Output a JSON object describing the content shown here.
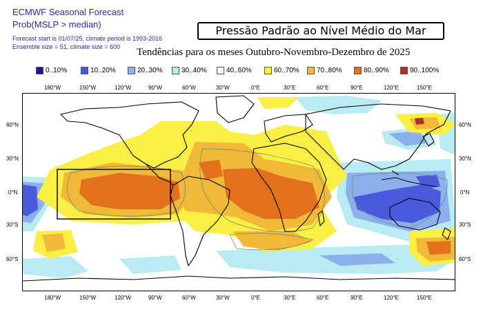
{
  "header": {
    "line1": "ECMWF Seasonal Forecast",
    "line2": "Prob(MSLP > median)",
    "line3": "Forecast start is 01/07/25, climate period is 1993-2016",
    "line4": "Ensemble size = 51, climate size = 600"
  },
  "title": "Pressão Padrão ao Nível Médio do Mar",
  "subtitle": "Tendências para os meses Outubro-Novembro-Dezembro de 2025",
  "legend": [
    {
      "label": "0..10%",
      "color": "#1a1a8c"
    },
    {
      "label": "10..20%",
      "color": "#4a5adc"
    },
    {
      "label": "20..30%",
      "color": "#8cb0ec"
    },
    {
      "label": "30..40%",
      "color": "#b8ecf2"
    },
    {
      "label": "40..60%",
      "color": "#ffffff"
    },
    {
      "label": "60..70%",
      "color": "#fbee44"
    },
    {
      "label": "70..80%",
      "color": "#f2b838"
    },
    {
      "label": "80..90%",
      "color": "#e2711e"
    },
    {
      "label": "90..100%",
      "color": "#ae3320"
    }
  ],
  "lon_labels": [
    "180°W",
    "150°W",
    "120°W",
    "90°W",
    "60°W",
    "30°W",
    "0°E",
    "30°E",
    "60°E",
    "90°E",
    "120°E",
    "150°E"
  ],
  "lat_labels": [
    "60°N",
    "30°N",
    "0°N",
    "30°S",
    "60°S"
  ]
}
